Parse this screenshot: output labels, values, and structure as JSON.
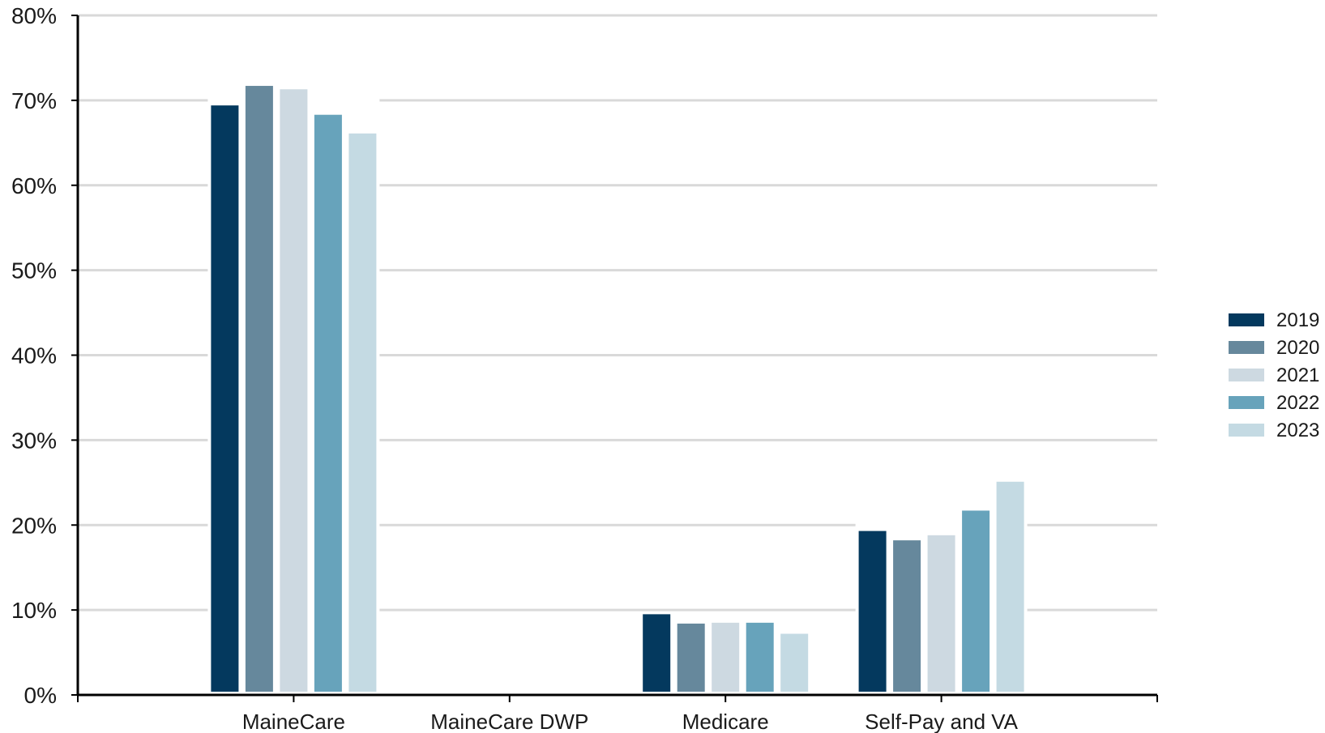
{
  "chart_data": {
    "type": "bar",
    "title": "",
    "xlabel": "",
    "ylabel": "",
    "categories": [
      "MaineCare",
      "MaineCare DWP",
      "Medicare",
      "Self-Pay and VA"
    ],
    "series": [
      {
        "name": "2019",
        "color": "#04395e",
        "values": [
          69.4,
          0,
          9.5,
          19.3
        ]
      },
      {
        "name": "2020",
        "color": "#66889c",
        "values": [
          71.7,
          0,
          8.4,
          18.2
        ]
      },
      {
        "name": "2021",
        "color": "#cdd9e1",
        "values": [
          71.3,
          0,
          8.5,
          18.8
        ]
      },
      {
        "name": "2022",
        "color": "#67a3bb",
        "values": [
          68.3,
          0,
          8.5,
          21.7
        ]
      },
      {
        "name": "2023",
        "color": "#c4dae3",
        "values": [
          66.1,
          0,
          7.2,
          25.1
        ]
      }
    ],
    "ylim": [
      0,
      80
    ],
    "y_ticks": [
      "0%",
      "10%",
      "20%",
      "30%",
      "40%",
      "50%",
      "60%",
      "70%",
      "80%"
    ],
    "grid": true,
    "legend_position": "right",
    "grid_color": "#d9d9d9",
    "axis_color": "#000000"
  }
}
